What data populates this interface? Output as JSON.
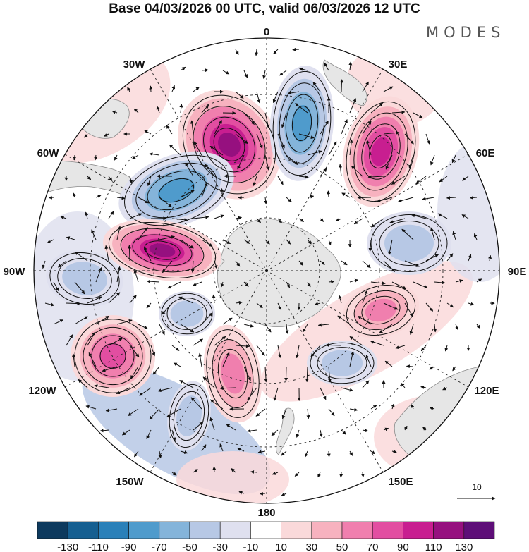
{
  "header": {
    "title": "Base 04/03/2026 00 UTC, valid 06/03/2026 12 UTC",
    "brand": "MODES"
  },
  "map": {
    "projection": "south-polar-stereographic",
    "longitude_labels": {
      "top": "0",
      "top_right": "30E",
      "right_upper": "60E",
      "right": "90E",
      "right_lower": "120E",
      "bottom_right": "150E",
      "bottom": "180",
      "bottom_left": "150W",
      "left_lower": "120W",
      "left": "90W",
      "left_upper": "60W",
      "top_left": "30W"
    },
    "reference_vector": "10"
  },
  "colorbar": {
    "ticks": [
      "-130",
      "-110",
      "-90",
      "-70",
      "-50",
      "-30",
      "-10",
      "10",
      "30",
      "50",
      "70",
      "90",
      "110",
      "130"
    ],
    "colors": [
      "#0d3a5e",
      "#155f91",
      "#2a80b9",
      "#4f9bcc",
      "#84b4da",
      "#b7c8e5",
      "#dfe0ef",
      "#ffffff",
      "#fad9da",
      "#f7b2bf",
      "#f07fae",
      "#e24ea1",
      "#c81e90",
      "#96107f",
      "#5e0e78"
    ]
  },
  "colors": {
    "land": "#e6e6e6",
    "coast": "#8a8a8a",
    "grid": "#222222"
  }
}
